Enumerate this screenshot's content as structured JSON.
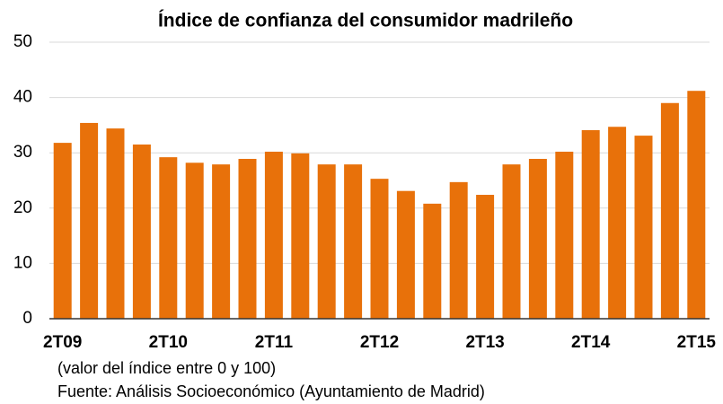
{
  "chart_data": {
    "type": "bar",
    "title": "Índice de confianza del consumidor madrileño",
    "categories": [
      "2T09",
      null,
      null,
      null,
      "2T10",
      null,
      null,
      null,
      "2T11",
      null,
      null,
      null,
      "2T12",
      null,
      null,
      null,
      "2T13",
      null,
      null,
      null,
      "2T14",
      null,
      null,
      null,
      "2T15"
    ],
    "values": [
      31.8,
      35.4,
      34.4,
      31.5,
      29.2,
      28.2,
      27.9,
      28.9,
      30.2,
      29.9,
      27.9,
      27.9,
      25.3,
      23.1,
      20.8,
      24.7,
      22.4,
      27.9,
      28.9,
      30.2,
      34.1,
      34.7,
      33.1,
      39.0,
      41.2
    ],
    "color": "#e8710a",
    "ylim": [
      0,
      50
    ],
    "yticks": [
      0,
      10,
      20,
      30,
      40,
      50
    ],
    "grid": true,
    "notes": [
      "(valor del índice entre 0 y 100)",
      "Fuente: Análisis Socioeconómico (Ayuntamiento de Madrid)"
    ]
  }
}
